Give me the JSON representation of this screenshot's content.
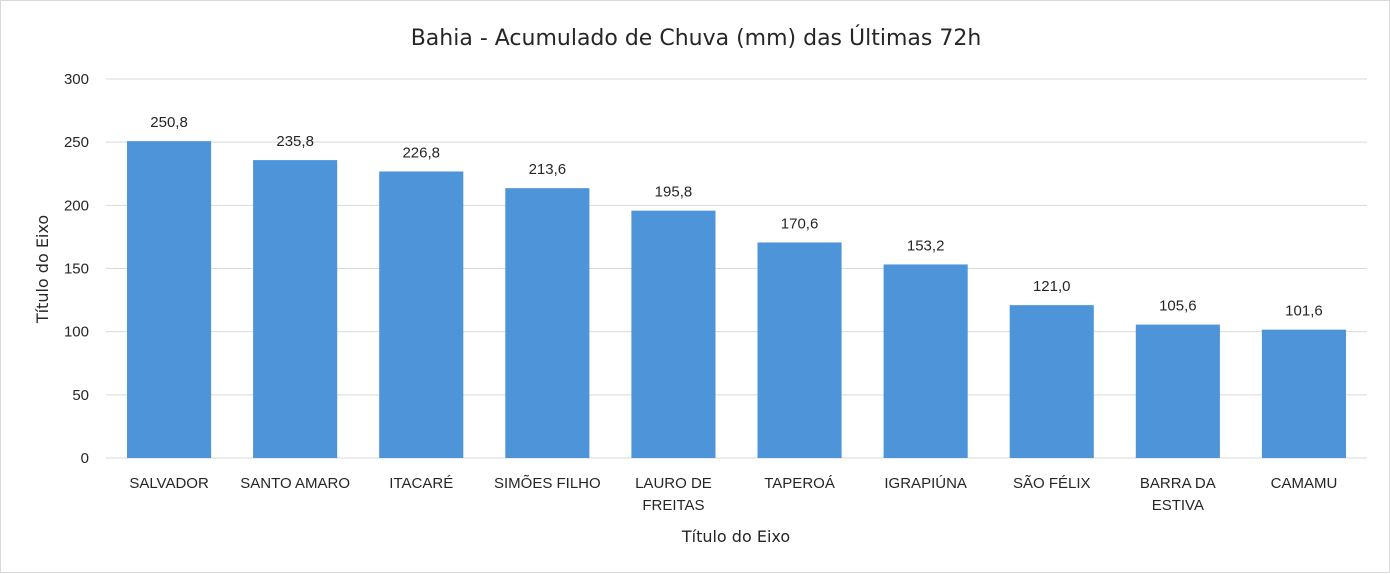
{
  "chart_data": {
    "type": "bar",
    "title": "Bahia - Acumulado de Chuva (mm) das Últimas 72h",
    "xlabel": "Título do Eixo",
    "ylabel": "Título do Eixo",
    "ylim": [
      0,
      300
    ],
    "yticks": [
      0,
      50,
      100,
      150,
      200,
      250,
      300
    ],
    "grid": true,
    "bar_color": "#4e94d8",
    "categories": [
      [
        "SALVADOR"
      ],
      [
        "SANTO AMARO"
      ],
      [
        "ITACARÉ"
      ],
      [
        "SIMÕES FILHO"
      ],
      [
        "LAURO DE",
        "FREITAS"
      ],
      [
        "TAPEROÁ"
      ],
      [
        "IGRAPIÚNA"
      ],
      [
        "SÃO FÉLIX"
      ],
      [
        "BARRA DA",
        "ESTIVA"
      ],
      [
        "CAMAMU"
      ]
    ],
    "values": [
      250.8,
      235.8,
      226.8,
      213.6,
      195.8,
      170.6,
      153.2,
      121.0,
      105.6,
      101.6
    ],
    "data_labels": [
      "250,8",
      "235,8",
      "226,8",
      "213,6",
      "195,8",
      "170,6",
      "153,2",
      "121,0",
      "105,6",
      "101,6"
    ]
  }
}
